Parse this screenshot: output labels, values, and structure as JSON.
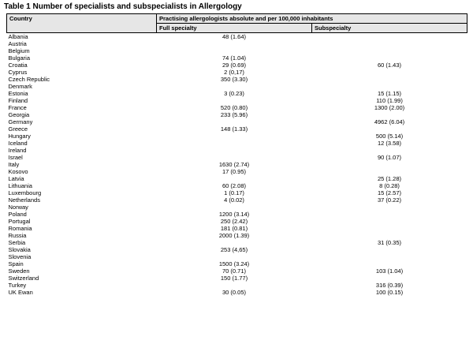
{
  "page": {
    "title": "Table 1 Number of specialists and subspecialists in Allergology"
  },
  "table": {
    "header": {
      "country": "Country",
      "group": "Practising allergologists absolute and per 100,000 inhabitants",
      "full_specialty": "Full specialty",
      "subspecialty": "Subspecialty"
    },
    "rows": [
      {
        "country": "Albania",
        "full": "48 (1.64)",
        "sub": ""
      },
      {
        "country": "Austria",
        "full": "",
        "sub": ""
      },
      {
        "country": "Belgium",
        "full": "",
        "sub": ""
      },
      {
        "country": "Bulgaria",
        "full": "74 (1.04)",
        "sub": ""
      },
      {
        "country": "Croatia",
        "full": "29 (0.69)",
        "sub": "60 (1.43)"
      },
      {
        "country": "Cyprus",
        "full": "2 (0,17)",
        "sub": ""
      },
      {
        "country": "Czech Republic",
        "full": "350 (3.30)",
        "sub": ""
      },
      {
        "country": "Denmark",
        "full": "",
        "sub": ""
      },
      {
        "country": "Estonia",
        "full": "3 (0.23)",
        "sub": "15 (1.15)"
      },
      {
        "country": "Finland",
        "full": "",
        "sub": "110 (1.99)"
      },
      {
        "country": "France",
        "full": "520 (0.80)",
        "sub": "1300 (2.00)"
      },
      {
        "country": "Georgia",
        "full": "233 (5.96)",
        "sub": ""
      },
      {
        "country": "Germany",
        "full": "",
        "sub": "4962 (6.04)"
      },
      {
        "country": "Greece",
        "full": "148 (1.33)",
        "sub": ""
      },
      {
        "country": "Hungary",
        "full": "",
        "sub": "500 (5.14)"
      },
      {
        "country": "Iceland",
        "full": "",
        "sub": "12 (3.58)"
      },
      {
        "country": "Ireland",
        "full": "",
        "sub": ""
      },
      {
        "country": "Israel",
        "full": "",
        "sub": "90 (1.07)"
      },
      {
        "country": "Italy",
        "full": "1630 (2.74)",
        "sub": ""
      },
      {
        "country": "Kosovo",
        "full": "17 (0.95)",
        "sub": ""
      },
      {
        "country": "Latvia",
        "full": "",
        "sub": "25 (1.28)"
      },
      {
        "country": "Lithuania",
        "full": "60 (2.08)",
        "sub": "8 (0.28)"
      },
      {
        "country": "Luxembourg",
        "full": "1 (0.17)",
        "sub": "15 (2.57)"
      },
      {
        "country": "Netherlands",
        "full": "4 (0.02)",
        "sub": "37 (0.22)"
      },
      {
        "country": "Norway",
        "full": "",
        "sub": ""
      },
      {
        "country": "Poland",
        "full": "1200 (3.14)",
        "sub": ""
      },
      {
        "country": "Portugal",
        "full": "250 (2.42)",
        "sub": ""
      },
      {
        "country": "Romania",
        "full": "181 (0.81)",
        "sub": ""
      },
      {
        "country": "Russia",
        "full": "2000 (1.39)",
        "sub": ""
      },
      {
        "country": "Serbia",
        "full": "",
        "sub": "31 (0.35)"
      },
      {
        "country": "Slovakia",
        "full": "253 (4,65)",
        "sub": ""
      },
      {
        "country": "Slovenia",
        "full": "",
        "sub": ""
      },
      {
        "country": "Spain",
        "full": "1500 (3.24)",
        "sub": ""
      },
      {
        "country": "Sweden",
        "full": "70 (0.71)",
        "sub": "103 (1.04)"
      },
      {
        "country": "Switzerland",
        "full": "150 (1.77)",
        "sub": ""
      },
      {
        "country": "Turkey",
        "full": "",
        "sub": "316 (0.39)"
      },
      {
        "country": "UK Ewan",
        "full": "30 (0.05)",
        "sub": "100 (0.15)"
      }
    ],
    "colors": {
      "header_background": "#e6e6e6",
      "border": "#000000",
      "text": "#000000",
      "page_background": "#ffffff"
    }
  }
}
